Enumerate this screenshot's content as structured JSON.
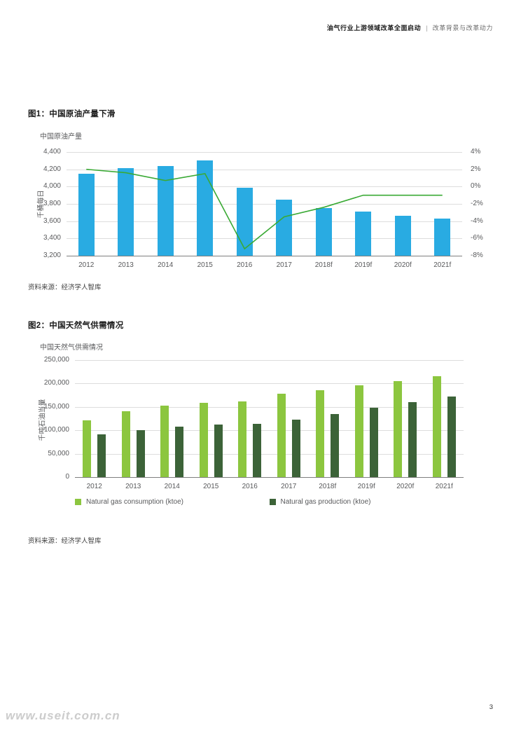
{
  "header": {
    "title": "油气行业上游领域改革全面启动",
    "separator": "|",
    "subtitle": "改革背景与改革动力"
  },
  "figure1": {
    "title": "图1：中国原油产量下滑",
    "subtitle": "中国原油产量",
    "ylabel": "千桶每日",
    "source": "资料来源：经济学人智库"
  },
  "figure2": {
    "title": "图2：中国天然气供需情况",
    "subtitle": "中国天然气供需情况",
    "ylabel": "千吨石油当量",
    "source": "资料来源：经济学人智库",
    "legend": [
      {
        "label": "Natural gas consumption (ktoe)",
        "color": "#8CC63F"
      },
      {
        "label": "Natural gas production (ktoe)",
        "color": "#3C6338"
      }
    ]
  },
  "footer": {
    "page_number": "3",
    "watermark": "www.useit.com.cn"
  },
  "colors": {
    "bar_blue": "#29ABE2",
    "line_green": "#3AAA35",
    "consumption_green": "#8CC63F",
    "production_green": "#3C6338",
    "gridline": "#DDDDDD",
    "axis": "#7F7F7F",
    "text_gray": "#58595B"
  },
  "chart_data": [
    {
      "type": "bar",
      "title": "中国原油产量",
      "categories": [
        "2012",
        "2013",
        "2014",
        "2015",
        "2016",
        "2017",
        "2018f",
        "2019f",
        "2020f",
        "2021f"
      ],
      "series": [
        {
          "id": "crude-oil-production-bars",
          "kind": "bar",
          "axis": "left",
          "values": [
            4150,
            4210,
            4240,
            4300,
            3990,
            3850,
            3750,
            3710,
            3660,
            3630
          ]
        },
        {
          "id": "yoy-change-line",
          "kind": "line",
          "axis": "right",
          "values": [
            2.0,
            1.6,
            0.7,
            1.5,
            -7.2,
            -3.5,
            -2.4,
            -1.0,
            -1.0,
            -1.0
          ]
        }
      ],
      "ylabel": "千桶每日",
      "ylim": [
        3200,
        4400
      ],
      "ystep": 200,
      "y2lim": [
        -8,
        4
      ],
      "y2step": 2,
      "grid": true,
      "legend_position": "none"
    },
    {
      "type": "bar",
      "title": "中国天然气供需情况",
      "categories": [
        "2012",
        "2013",
        "2014",
        "2015",
        "2016",
        "2017",
        "2018f",
        "2019f",
        "2020f",
        "2021f"
      ],
      "series": [
        {
          "id": "natural-gas-consumption-bars",
          "kind": "bar",
          "name": "Natural gas consumption (ktoe)",
          "values": [
            122000,
            140000,
            152000,
            158000,
            162000,
            178000,
            186000,
            196000,
            205000,
            215000
          ]
        },
        {
          "id": "natural-gas-production-bars",
          "kind": "bar",
          "name": "Natural gas production (ktoe)",
          "values": [
            92000,
            100000,
            108000,
            112000,
            114000,
            123000,
            135000,
            148000,
            160000,
            172000
          ]
        }
      ],
      "ylabel": "千吨石油当量",
      "ylim": [
        0,
        250000
      ],
      "ystep": 50000,
      "grid": true,
      "legend_position": "bottom"
    }
  ]
}
